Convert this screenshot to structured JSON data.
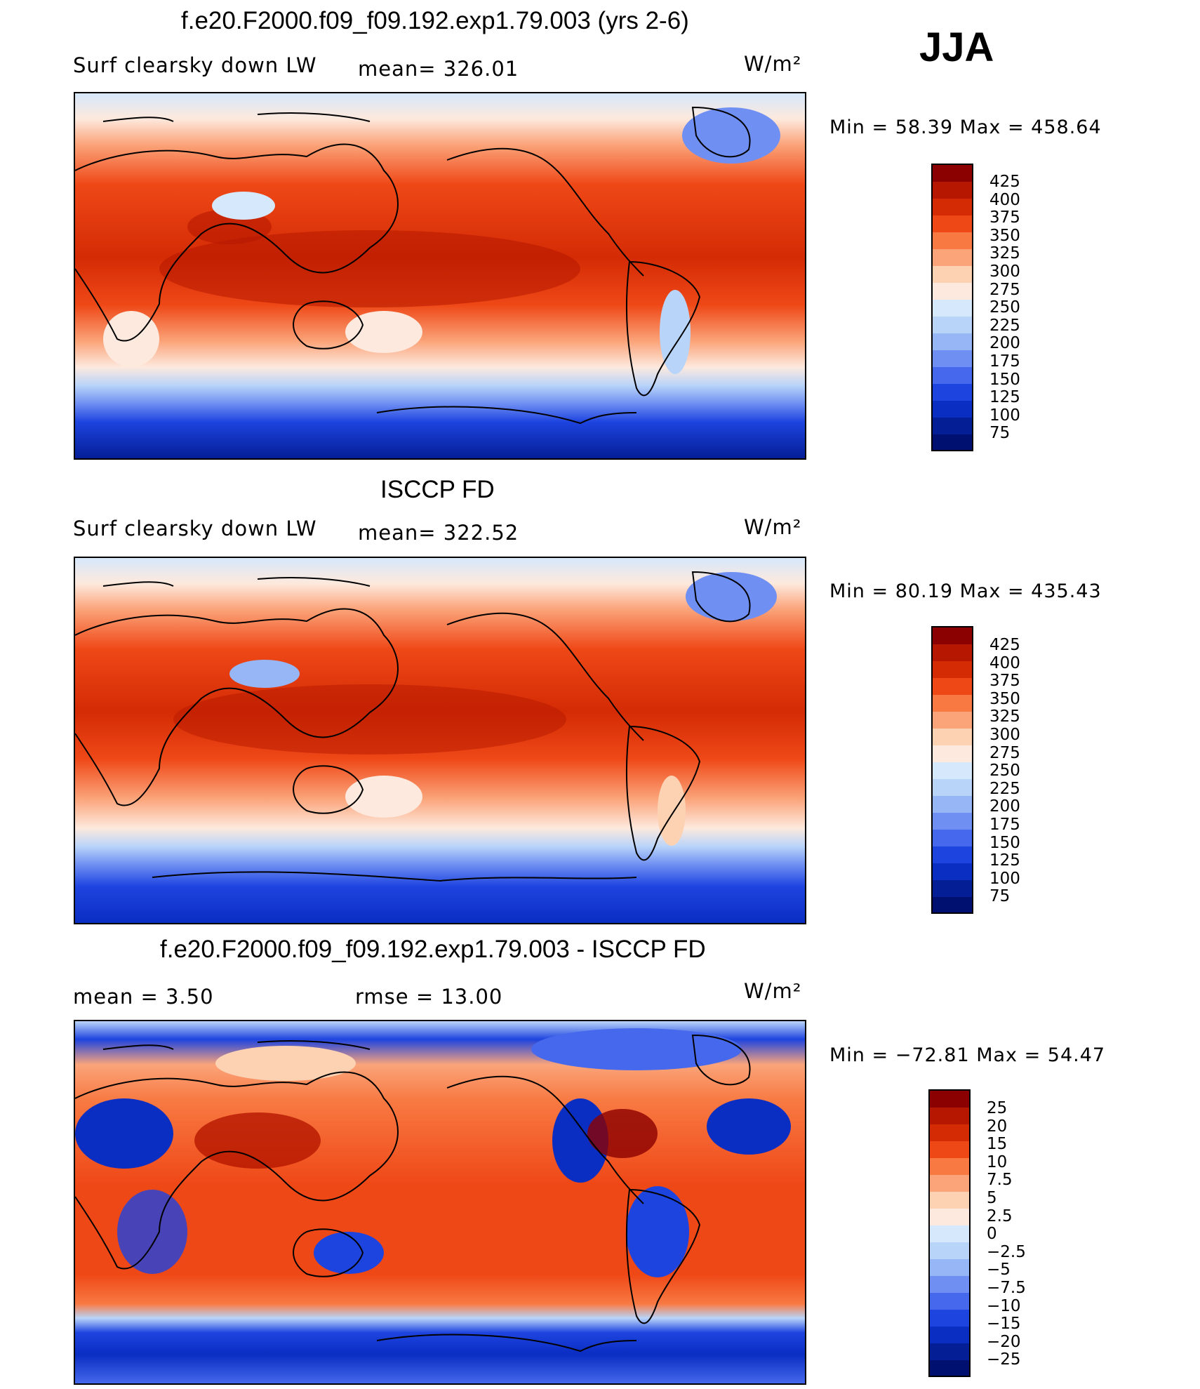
{
  "season": "JJA",
  "units": "W/m²",
  "panels": [
    {
      "title": "f.e20.F2000.f09_f09.192.exp1.79.003 (yrs 2-6)",
      "left_text": "Surf clearsky down LW",
      "mid_text": "mean=  326.01",
      "minmax": "Min =   58.39  Max  =  458.64",
      "levels": [
        "425",
        "400",
        "375",
        "350",
        "325",
        "300",
        "275",
        "250",
        "225",
        "200",
        "175",
        "150",
        "125",
        "100",
        "75"
      ]
    },
    {
      "title": "ISCCP FD",
      "left_text": "Surf clearsky down LW",
      "mid_text": "mean=  322.52",
      "minmax": "Min =   80.19  Max  =  435.43",
      "levels": [
        "425",
        "400",
        "375",
        "350",
        "325",
        "300",
        "275",
        "250",
        "225",
        "200",
        "175",
        "150",
        "125",
        "100",
        "75"
      ]
    },
    {
      "title": "f.e20.F2000.f09_f09.192.exp1.79.003 - ISCCP FD",
      "left_text": "mean  =     3.50",
      "mid_text": "rmse  =     13.00",
      "minmax": "Min  =  −72.81  Max  =    54.47",
      "levels": [
        "25",
        "20",
        "15",
        "10",
        "7.5",
        "5",
        "2.5",
        "0",
        "−2.5",
        "−5",
        "−7.5",
        "−10",
        "−15",
        "−20",
        "−25"
      ]
    }
  ],
  "colorbar_colors": [
    "#8b0000",
    "#b51700",
    "#d42b05",
    "#ef4817",
    "#f87942",
    "#fba47a",
    "#fcd2b3",
    "#fde9dd",
    "#d6e8fb",
    "#b9d4f9",
    "#96b6f6",
    "#6f8ff2",
    "#4568ec",
    "#1e44e0",
    "#0a2dc2",
    "#041e96",
    "#001070"
  ]
}
